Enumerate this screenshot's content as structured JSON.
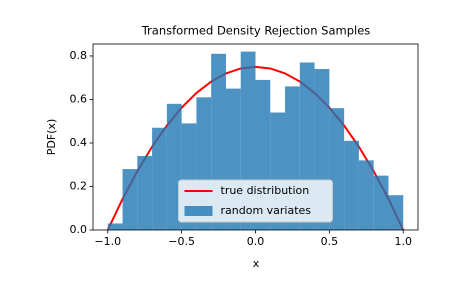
{
  "chart_data": {
    "type": "histogram",
    "title": "Transformed Density Rejection Samples",
    "x_label": "x",
    "y_label": "PDF(x)",
    "xlim": [
      -1.1,
      1.1
    ],
    "ylim": [
      0,
      0.855
    ],
    "xticks": [
      {
        "value": -1,
        "label": "−1.0"
      },
      {
        "value": -0.5,
        "label": "−0.5"
      },
      {
        "value": 0,
        "label": "0.0"
      },
      0.5,
      {
        "value": 1,
        "label": "1.0"
      }
    ],
    "yticks": [
      {
        "value": 0,
        "label": "0.0"
      },
      0.2,
      0.4,
      0.6,
      0.8
    ],
    "legend": "lower center",
    "series": [
      {
        "type": "line",
        "name": "true distribution",
        "color": "#ff0000",
        "x": [
          -1,
          -0.9,
          -0.8,
          -0.7,
          -0.6,
          -0.5,
          -0.4,
          -0.3,
          -0.2,
          -0.1,
          0,
          0.1,
          0.2,
          0.3,
          0.4,
          0.5,
          0.6,
          0.7,
          0.8,
          0.9,
          1
        ],
        "values": [
          0,
          0.1425,
          0.27,
          0.3825,
          0.48,
          0.5625,
          0.63,
          0.6825,
          0.72,
          0.7425,
          0.75,
          0.7425,
          0.72,
          0.6825,
          0.63,
          0.5625,
          0.48,
          0.3825,
          0.27,
          0.1425,
          0
        ]
      },
      {
        "type": "histogram",
        "name": "random variates",
        "color": "#1f77b4",
        "bins": [
          -1,
          -0.9,
          -0.8,
          -0.7,
          -0.6,
          -0.5,
          -0.4,
          -0.3,
          -0.2,
          -0.1,
          0,
          0.1,
          0.2,
          0.3,
          0.4,
          0.5,
          0.6,
          0.7,
          0.8,
          0.9,
          1
        ],
        "values": [
          0.03,
          0.28,
          0.34,
          0.47,
          0.58,
          0.49,
          0.61,
          0.81,
          0.65,
          0.82,
          0.69,
          0.54,
          0.66,
          0.77,
          0.74,
          0.56,
          0.41,
          0.32,
          0.25,
          0.16
        ]
      }
    ]
  }
}
